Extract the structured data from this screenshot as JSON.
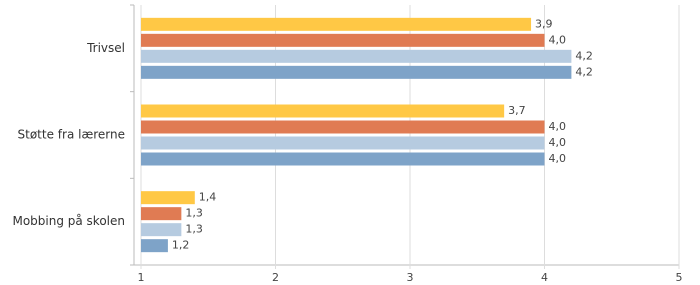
{
  "chart_data": {
    "type": "bar",
    "orientation": "horizontal",
    "categories": [
      "Trivsel",
      "Støtte fra lærerne",
      "Mobbing på skolen"
    ],
    "series": [
      {
        "color": "#ffc845",
        "values": [
          3.9,
          3.7,
          1.4
        ],
        "value_labels": [
          "3,9",
          "3,7",
          "1,4"
        ]
      },
      {
        "color": "#e07b53",
        "values": [
          4.0,
          4.0,
          1.3
        ],
        "value_labels": [
          "4,0",
          "4,0",
          "1,3"
        ]
      },
      {
        "color": "#b6cbe0",
        "values": [
          4.2,
          4.0,
          1.3
        ],
        "value_labels": [
          "4,2",
          "4,0",
          "1,3"
        ]
      },
      {
        "color": "#7ea3c8",
        "values": [
          4.2,
          4.0,
          1.2
        ],
        "value_labels": [
          "4,2",
          "4,0",
          "1,2"
        ]
      }
    ],
    "xlim": [
      1,
      5
    ],
    "xticks": [
      1,
      2,
      3,
      4,
      5
    ],
    "grid": true
  }
}
